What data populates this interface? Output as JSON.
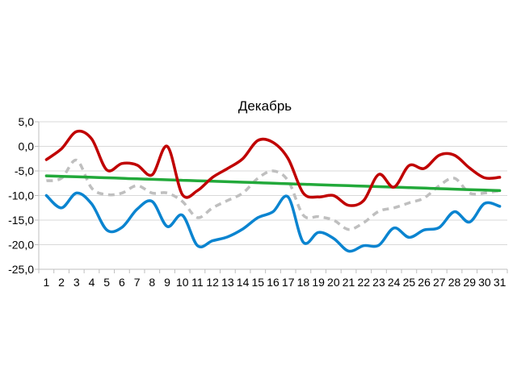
{
  "chart_data": {
    "type": "line",
    "title": "Декабрь",
    "xlabel": "",
    "ylabel": "",
    "categories": [
      "1",
      "2",
      "3",
      "4",
      "5",
      "6",
      "7",
      "8",
      "9",
      "10",
      "11",
      "12",
      "13",
      "14",
      "15",
      "16",
      "17",
      "18",
      "19",
      "20",
      "21",
      "22",
      "23",
      "24",
      "25",
      "26",
      "27",
      "28",
      "29",
      "30",
      "31"
    ],
    "ylim": [
      -25,
      5
    ],
    "yticks": [
      "5,0",
      "0,0",
      "-5,0",
      "-10,0",
      "-15,0",
      "-20,0",
      "-25,0"
    ],
    "ytick_values": [
      5,
      0,
      -5,
      -10,
      -15,
      -20,
      -25
    ],
    "grid": true,
    "series": [
      {
        "color": "#c00000",
        "style": "solid",
        "values": [
          -2.7,
          -0.5,
          3.0,
          1.5,
          -4.8,
          -3.5,
          -3.8,
          -5.8,
          0.0,
          -9.8,
          -9.0,
          -6.3,
          -4.5,
          -2.5,
          1.2,
          0.8,
          -2.5,
          -9.5,
          -10.3,
          -10.0,
          -12.0,
          -11.0,
          -5.7,
          -8.3,
          -3.9,
          -4.5,
          -1.8,
          -1.8,
          -4.4,
          -6.4,
          -6.3
        ]
      },
      {
        "color": "#0a84d0",
        "style": "solid",
        "values": [
          -10.0,
          -12.5,
          -9.5,
          -11.7,
          -17.0,
          -16.5,
          -12.8,
          -11.2,
          -16.3,
          -14.0,
          -20.2,
          -19.2,
          -18.4,
          -16.8,
          -14.5,
          -13.3,
          -10.3,
          -19.5,
          -17.5,
          -18.7,
          -21.3,
          -20.2,
          -20.1,
          -16.6,
          -18.5,
          -17.0,
          -16.5,
          -13.3,
          -15.4,
          -11.6,
          -12.2
        ]
      },
      {
        "color": "#bfbfbf",
        "style": "dashed",
        "values": [
          -7.0,
          -6.5,
          -2.8,
          -8.5,
          -9.8,
          -9.5,
          -8.0,
          -9.5,
          -9.5,
          -11.2,
          -14.5,
          -12.5,
          -11.0,
          -9.5,
          -6.5,
          -5.0,
          -7.0,
          -14.0,
          -14.3,
          -15.0,
          -16.9,
          -15.5,
          -13.2,
          -12.5,
          -11.5,
          -10.5,
          -8.0,
          -6.5,
          -9.5,
          -9.5,
          -9.0
        ]
      },
      {
        "color": "#22a93a",
        "style": "solid",
        "values": [
          -6.0,
          -6.1,
          -6.2,
          -6.3,
          -6.4,
          -6.5,
          -6.6,
          -6.7,
          -6.8,
          -6.9,
          -7.0,
          -7.1,
          -7.2,
          -7.3,
          -7.4,
          -7.5,
          -7.6,
          -7.7,
          -7.8,
          -7.9,
          -8.0,
          -8.1,
          -8.2,
          -8.3,
          -8.4,
          -8.5,
          -8.6,
          -8.7,
          -8.8,
          -8.9,
          -9.0
        ]
      }
    ]
  }
}
